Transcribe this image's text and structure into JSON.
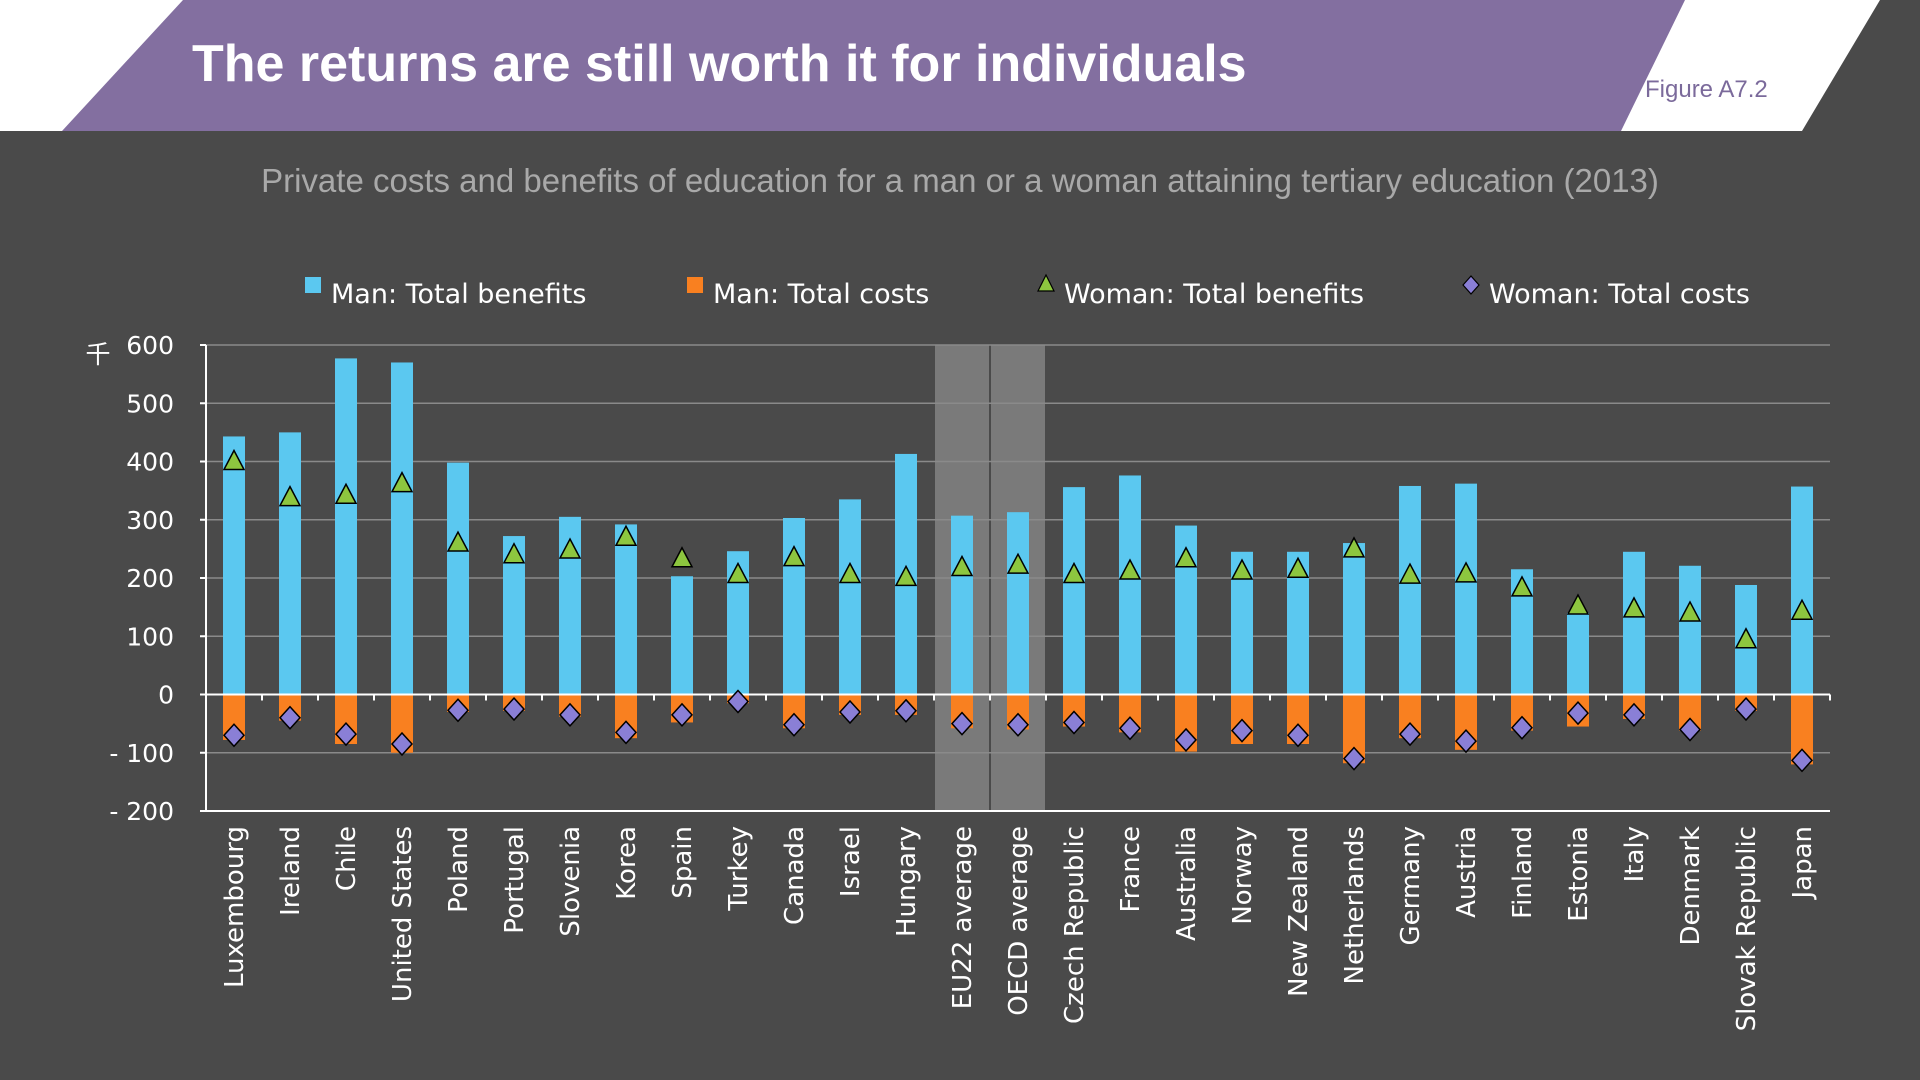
{
  "slide": {
    "title": "The returns are still worth it for individuals",
    "figure_label": "Figure A7.2",
    "colors": {
      "banner": "#836fa0",
      "background": "#4a4a4a",
      "man_benefits": "#5bc8f0",
      "man_costs": "#f98020",
      "woman_benefits": "#8dc63f",
      "woman_costs": "#8a7fd6",
      "highlight_band": "#7a7a7a"
    }
  },
  "chart_data": {
    "type": "bar",
    "subtitle": "Private costs and benefits of education for a man or a woman attaining tertiary education (2013)",
    "y_unit_label": "千",
    "ylim": [
      -200,
      600
    ],
    "yticks": [
      600,
      500,
      400,
      300,
      200,
      100,
      0,
      -100,
      -200
    ],
    "ytick_labels": [
      "600",
      "500",
      "400",
      "300",
      "200",
      "100",
      "0",
      "-  100",
      "-  200"
    ],
    "grid": true,
    "legend_position": "top",
    "highlighted_categories": [
      "EU22 average",
      "OECD average"
    ],
    "categories": [
      "Luxembourg",
      "Ireland",
      "Chile",
      "United States",
      "Poland",
      "Portugal",
      "Slovenia",
      "Korea",
      "Spain",
      "Turkey",
      "Canada",
      "Israel",
      "Hungary",
      "EU22 average",
      "OECD average",
      "Czech Republic",
      "France",
      "Australia",
      "Norway",
      "New Zealand",
      "Netherlands",
      "Germany",
      "Austria",
      "Finland",
      "Estonia",
      "Italy",
      "Denmark",
      "Slovak Republic",
      "Japan"
    ],
    "series": [
      {
        "name": "Man: Total benefits",
        "kind": "bar",
        "values": [
          443,
          450,
          577,
          570,
          398,
          272,
          305,
          292,
          203,
          246,
          303,
          335,
          413,
          307,
          313,
          356,
          376,
          290,
          245,
          245,
          260,
          358,
          362,
          215,
          140,
          245,
          221,
          188,
          357
        ]
      },
      {
        "name": "Man: Total costs",
        "kind": "bar",
        "values": [
          -78,
          -45,
          -85,
          -100,
          -30,
          -28,
          -38,
          -75,
          -48,
          -15,
          -58,
          -35,
          -35,
          -58,
          -60,
          -55,
          -65,
          -98,
          -85,
          -85,
          -118,
          -75,
          -95,
          -62,
          -55,
          -42,
          -62,
          -28,
          -120
        ]
      },
      {
        "name": "Woman: Total benefits",
        "kind": "marker-triangle",
        "values": [
          400,
          338,
          342,
          362,
          260,
          240,
          248,
          270,
          233,
          206,
          235,
          206,
          201,
          218,
          222,
          206,
          212,
          233,
          212,
          215,
          250,
          205,
          207,
          183,
          152,
          147,
          140,
          94,
          143
        ]
      },
      {
        "name": "Woman: Total costs",
        "kind": "marker-diamond",
        "values": [
          -70,
          -40,
          -68,
          -85,
          -27,
          -25,
          -35,
          -65,
          -35,
          -12,
          -52,
          -30,
          -28,
          -50,
          -52,
          -48,
          -58,
          -78,
          -62,
          -70,
          -110,
          -68,
          -80,
          -57,
          -32,
          -35,
          -60,
          -25,
          -113
        ]
      }
    ]
  }
}
